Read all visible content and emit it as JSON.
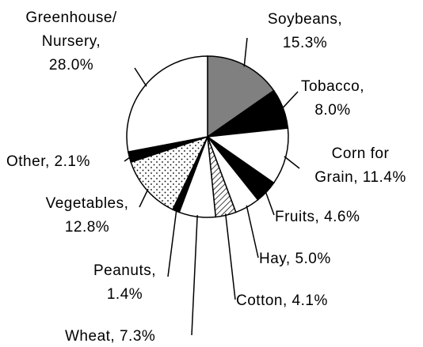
{
  "chart_data": {
    "type": "pie",
    "categories": [
      "Soybeans,",
      "Tobacco,",
      "Corn for\nGrain,",
      "Fruits,",
      "Hay,",
      "Cotton,",
      "Wheat,",
      "Peanuts,",
      "Vegetables,",
      "Other,",
      "Greenhouse/\nNursery,"
    ],
    "values": [
      15.3,
      8.0,
      11.4,
      4.6,
      5.0,
      4.1,
      7.3,
      1.4,
      12.8,
      2.1,
      28.0
    ],
    "value_labels": [
      "15.3%",
      "8.0%",
      "11.4%",
      "4.6%",
      "5.0%",
      "4.1%",
      "7.3%",
      "1.4%",
      "12.8%",
      "2.1%",
      "28.0%"
    ],
    "colors": [
      "#808080",
      "#000000",
      "#ffffff",
      "#000000",
      "#ffffff",
      "hatch",
      "#ffffff",
      "#000000",
      "dots",
      "#000000",
      "#ffffff"
    ]
  }
}
